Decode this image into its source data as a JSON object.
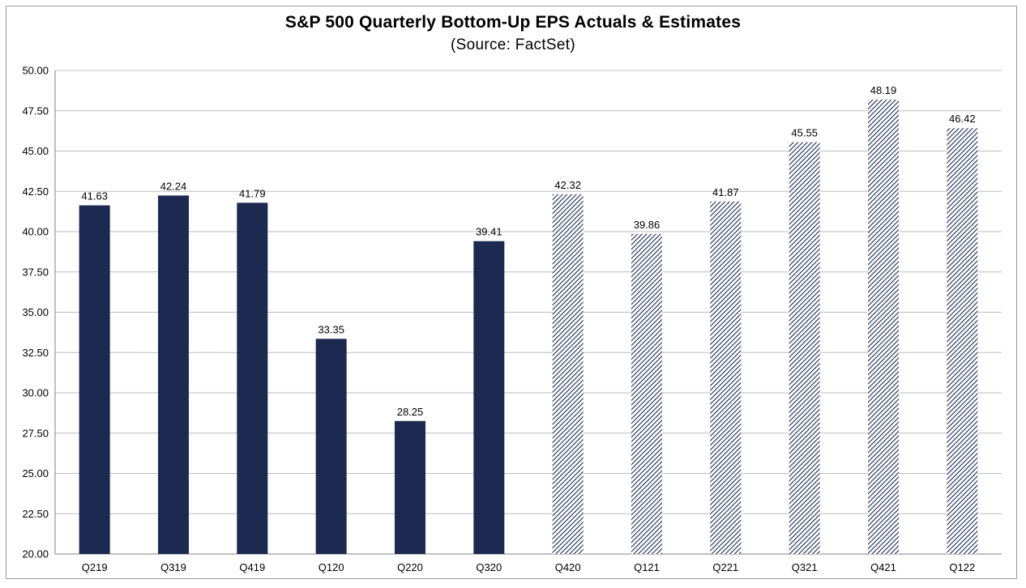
{
  "chart_data": {
    "type": "bar",
    "title": "S&P 500 Quarterly Bottom-Up EPS Actuals & Estimates",
    "subtitle": "(Source: FactSet)",
    "xlabel": "",
    "ylabel": "",
    "ylim": [
      20.0,
      50.0
    ],
    "yticks": [
      "20.00",
      "22.50",
      "25.00",
      "27.50",
      "30.00",
      "32.50",
      "35.00",
      "37.50",
      "40.00",
      "42.50",
      "45.00",
      "47.50",
      "50.00"
    ],
    "grid": true,
    "categories": [
      "Q219",
      "Q319",
      "Q419",
      "Q120",
      "Q220",
      "Q320",
      "Q420",
      "Q121",
      "Q221",
      "Q321",
      "Q421",
      "Q122"
    ],
    "values": [
      41.63,
      42.24,
      41.79,
      33.35,
      28.25,
      39.41,
      42.32,
      39.86,
      41.87,
      45.55,
      48.19,
      46.42
    ],
    "data_labels": [
      "41.63",
      "42.24",
      "41.79",
      "33.35",
      "28.25",
      "39.41",
      "42.32",
      "39.86",
      "41.87",
      "45.55",
      "48.19",
      "46.42"
    ],
    "bar_styles": [
      "solid",
      "solid",
      "solid",
      "solid",
      "solid",
      "solid",
      "hatched",
      "hatched",
      "hatched",
      "hatched",
      "hatched",
      "hatched"
    ]
  },
  "colors": {
    "bar": "#1c2951",
    "grid": "#bdbdbd",
    "axis": "#808080",
    "text": "#000000"
  }
}
